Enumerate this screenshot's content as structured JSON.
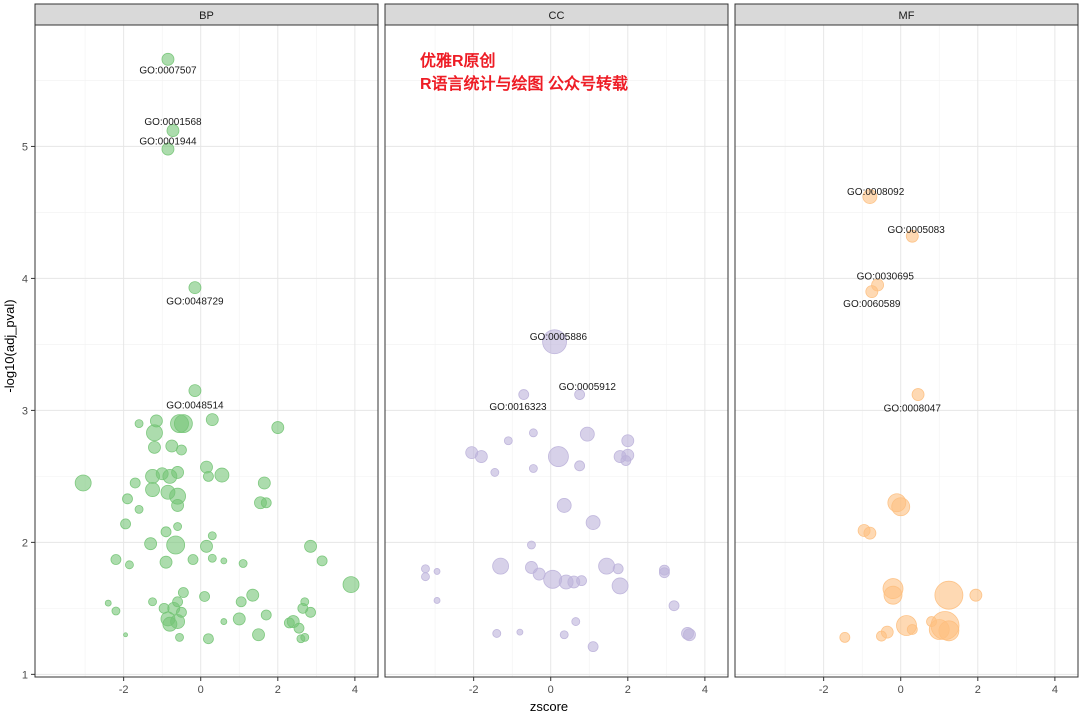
{
  "chart_data": {
    "type": "scatter",
    "xlabel": "zscore",
    "ylabel": "-log10(adj_pval)",
    "xlim": [
      -4.3,
      4.6
    ],
    "ylim": [
      0.98,
      5.92
    ],
    "x_ticks": [
      -2,
      0,
      2,
      4
    ],
    "y_ticks": [
      1,
      2,
      3,
      4,
      5
    ],
    "grid": true,
    "watermark": [
      "优雅R原创",
      "R语言统计与绘图 公众号转载"
    ],
    "panels": [
      {
        "facet": "BP",
        "color": "#74c476",
        "points": [
          {
            "x": -0.85,
            "y": 5.66,
            "r": 6
          },
          {
            "x": -0.72,
            "y": 5.12,
            "r": 6
          },
          {
            "x": -0.85,
            "y": 4.98,
            "r": 6
          },
          {
            "x": -0.15,
            "y": 3.93,
            "r": 6
          },
          {
            "x": -0.15,
            "y": 3.15,
            "r": 6
          },
          {
            "x": -3.05,
            "y": 2.45,
            "r": 8
          },
          {
            "x": -1.2,
            "y": 2.83,
            "r": 8
          },
          {
            "x": -1.15,
            "y": 2.92,
            "r": 6
          },
          {
            "x": -0.55,
            "y": 2.9,
            "r": 9
          },
          {
            "x": -0.45,
            "y": 2.9,
            "r": 9
          },
          {
            "x": 0.3,
            "y": 2.93,
            "r": 6
          },
          {
            "x": 2.0,
            "y": 2.87,
            "r": 6
          },
          {
            "x": -1.6,
            "y": 2.9,
            "r": 4
          },
          {
            "x": -0.75,
            "y": 2.73,
            "r": 6
          },
          {
            "x": -0.5,
            "y": 2.7,
            "r": 5
          },
          {
            "x": -1.2,
            "y": 2.72,
            "r": 6
          },
          {
            "x": -1.7,
            "y": 2.45,
            "r": 5
          },
          {
            "x": -1.25,
            "y": 2.5,
            "r": 7
          },
          {
            "x": -1.25,
            "y": 2.4,
            "r": 7
          },
          {
            "x": -1.0,
            "y": 2.52,
            "r": 6
          },
          {
            "x": -0.8,
            "y": 2.5,
            "r": 7
          },
          {
            "x": -0.6,
            "y": 2.53,
            "r": 6
          },
          {
            "x": -0.85,
            "y": 2.38,
            "r": 7
          },
          {
            "x": -0.6,
            "y": 2.35,
            "r": 8
          },
          {
            "x": -0.6,
            "y": 2.28,
            "r": 6
          },
          {
            "x": 0.15,
            "y": 2.57,
            "r": 6
          },
          {
            "x": 0.2,
            "y": 2.5,
            "r": 5
          },
          {
            "x": 0.55,
            "y": 2.51,
            "r": 7
          },
          {
            "x": 1.65,
            "y": 2.45,
            "r": 6
          },
          {
            "x": 1.55,
            "y": 2.3,
            "r": 6
          },
          {
            "x": 1.7,
            "y": 2.3,
            "r": 5
          },
          {
            "x": -1.9,
            "y": 2.33,
            "r": 5
          },
          {
            "x": -1.6,
            "y": 2.25,
            "r": 4
          },
          {
            "x": -1.95,
            "y": 2.14,
            "r": 5
          },
          {
            "x": -0.9,
            "y": 2.08,
            "r": 5
          },
          {
            "x": -1.3,
            "y": 1.99,
            "r": 6
          },
          {
            "x": -0.65,
            "y": 1.98,
            "r": 9
          },
          {
            "x": 0.15,
            "y": 1.97,
            "r": 6
          },
          {
            "x": 0.3,
            "y": 2.05,
            "r": 4
          },
          {
            "x": -0.6,
            "y": 2.12,
            "r": 4
          },
          {
            "x": -2.2,
            "y": 1.87,
            "r": 5
          },
          {
            "x": -1.85,
            "y": 1.83,
            "r": 4
          },
          {
            "x": -0.9,
            "y": 1.85,
            "r": 6
          },
          {
            "x": -0.2,
            "y": 1.87,
            "r": 5
          },
          {
            "x": 0.3,
            "y": 1.88,
            "r": 4
          },
          {
            "x": 0.6,
            "y": 1.86,
            "r": 3
          },
          {
            "x": 1.1,
            "y": 1.84,
            "r": 4
          },
          {
            "x": 2.85,
            "y": 1.97,
            "r": 6
          },
          {
            "x": 3.15,
            "y": 1.86,
            "r": 5
          },
          {
            "x": 3.9,
            "y": 1.68,
            "r": 8
          },
          {
            "x": -2.4,
            "y": 1.54,
            "r": 3
          },
          {
            "x": -2.2,
            "y": 1.48,
            "r": 4
          },
          {
            "x": -1.95,
            "y": 1.3,
            "r": 2
          },
          {
            "x": -1.25,
            "y": 1.55,
            "r": 4
          },
          {
            "x": -0.95,
            "y": 1.5,
            "r": 5
          },
          {
            "x": -0.7,
            "y": 1.5,
            "r": 6
          },
          {
            "x": -0.5,
            "y": 1.47,
            "r": 5
          },
          {
            "x": -0.45,
            "y": 1.62,
            "r": 5
          },
          {
            "x": -0.6,
            "y": 1.55,
            "r": 5
          },
          {
            "x": -0.85,
            "y": 1.42,
            "r": 7
          },
          {
            "x": -0.8,
            "y": 1.38,
            "r": 7
          },
          {
            "x": -0.6,
            "y": 1.4,
            "r": 7
          },
          {
            "x": 0.1,
            "y": 1.59,
            "r": 5
          },
          {
            "x": 1.05,
            "y": 1.55,
            "r": 5
          },
          {
            "x": 1.0,
            "y": 1.42,
            "r": 6
          },
          {
            "x": 1.35,
            "y": 1.6,
            "r": 6
          },
          {
            "x": 1.7,
            "y": 1.45,
            "r": 5
          },
          {
            "x": 2.4,
            "y": 1.4,
            "r": 6
          },
          {
            "x": 2.55,
            "y": 1.35,
            "r": 5
          },
          {
            "x": 2.65,
            "y": 1.5,
            "r": 5
          },
          {
            "x": 2.7,
            "y": 1.55,
            "r": 4
          },
          {
            "x": 2.85,
            "y": 1.47,
            "r": 5
          },
          {
            "x": 1.5,
            "y": 1.3,
            "r": 6
          },
          {
            "x": 0.2,
            "y": 1.27,
            "r": 5
          },
          {
            "x": -0.55,
            "y": 1.28,
            "r": 4
          },
          {
            "x": 2.3,
            "y": 1.39,
            "r": 5
          },
          {
            "x": 2.6,
            "y": 1.27,
            "r": 4
          },
          {
            "x": 2.7,
            "y": 1.28,
            "r": 4
          },
          {
            "x": 0.6,
            "y": 1.4,
            "r": 3
          }
        ],
        "labels": [
          {
            "text": "GO:0007507",
            "x": -0.85,
            "y": 5.58
          },
          {
            "text": "GO:0001568",
            "x": -0.72,
            "y": 5.19
          },
          {
            "text": "GO:0001944",
            "x": -0.85,
            "y": 5.04
          },
          {
            "text": "GO:0048729",
            "x": -0.15,
            "y": 3.83
          },
          {
            "text": "GO:0048514",
            "x": -0.15,
            "y": 3.04
          }
        ]
      },
      {
        "facet": "CC",
        "color": "#bcb2da",
        "points": [
          {
            "x": 0.1,
            "y": 3.52,
            "r": 12
          },
          {
            "x": 0.75,
            "y": 3.12,
            "r": 5
          },
          {
            "x": -0.7,
            "y": 3.12,
            "r": 5
          },
          {
            "x": -2.05,
            "y": 2.68,
            "r": 6
          },
          {
            "x": -1.8,
            "y": 2.65,
            "r": 6
          },
          {
            "x": -1.45,
            "y": 2.53,
            "r": 4
          },
          {
            "x": -1.1,
            "y": 2.77,
            "r": 4
          },
          {
            "x": -0.45,
            "y": 2.83,
            "r": 4
          },
          {
            "x": 0.2,
            "y": 2.65,
            "r": 10
          },
          {
            "x": 0.95,
            "y": 2.82,
            "r": 7
          },
          {
            "x": 0.75,
            "y": 2.58,
            "r": 5
          },
          {
            "x": 1.8,
            "y": 2.65,
            "r": 6
          },
          {
            "x": 2.0,
            "y": 2.77,
            "r": 6
          },
          {
            "x": 2.0,
            "y": 2.66,
            "r": 6
          },
          {
            "x": 1.95,
            "y": 2.62,
            "r": 5
          },
          {
            "x": -0.45,
            "y": 2.56,
            "r": 4
          },
          {
            "x": 0.35,
            "y": 2.28,
            "r": 7
          },
          {
            "x": 1.1,
            "y": 2.15,
            "r": 7
          },
          {
            "x": -0.5,
            "y": 1.98,
            "r": 4
          },
          {
            "x": -3.25,
            "y": 1.8,
            "r": 4
          },
          {
            "x": -3.25,
            "y": 1.74,
            "r": 4
          },
          {
            "x": -2.95,
            "y": 1.78,
            "r": 3
          },
          {
            "x": -1.3,
            "y": 1.82,
            "r": 8
          },
          {
            "x": -0.5,
            "y": 1.81,
            "r": 6
          },
          {
            "x": -0.3,
            "y": 1.76,
            "r": 6
          },
          {
            "x": 0.05,
            "y": 1.72,
            "r": 9
          },
          {
            "x": 0.4,
            "y": 1.7,
            "r": 7
          },
          {
            "x": 0.6,
            "y": 1.7,
            "r": 6
          },
          {
            "x": 0.8,
            "y": 1.71,
            "r": 5
          },
          {
            "x": 1.45,
            "y": 1.82,
            "r": 8
          },
          {
            "x": 1.75,
            "y": 1.8,
            "r": 5
          },
          {
            "x": 1.8,
            "y": 1.67,
            "r": 8
          },
          {
            "x": 2.95,
            "y": 1.79,
            "r": 5
          },
          {
            "x": 2.95,
            "y": 1.77,
            "r": 5
          },
          {
            "x": -2.95,
            "y": 1.56,
            "r": 3
          },
          {
            "x": 3.2,
            "y": 1.52,
            "r": 5
          },
          {
            "x": -1.4,
            "y": 1.31,
            "r": 4
          },
          {
            "x": -0.8,
            "y": 1.32,
            "r": 3
          },
          {
            "x": 0.35,
            "y": 1.3,
            "r": 4
          },
          {
            "x": 0.65,
            "y": 1.4,
            "r": 4
          },
          {
            "x": 1.1,
            "y": 1.21,
            "r": 5
          },
          {
            "x": 3.55,
            "y": 1.31,
            "r": 6
          },
          {
            "x": 3.6,
            "y": 1.3,
            "r": 6
          }
        ],
        "labels": [
          {
            "text": "GO:0005886",
            "x": 0.2,
            "y": 3.56
          },
          {
            "text": "GO:0005912",
            "x": 0.95,
            "y": 3.18
          },
          {
            "text": "GO:0016323",
            "x": -0.85,
            "y": 3.03
          }
        ]
      },
      {
        "facet": "MF",
        "color": "#fdbf80",
        "points": [
          {
            "x": -0.8,
            "y": 4.62,
            "r": 7
          },
          {
            "x": 0.3,
            "y": 4.32,
            "r": 6
          },
          {
            "x": -0.6,
            "y": 3.95,
            "r": 6
          },
          {
            "x": -0.75,
            "y": 3.9,
            "r": 6
          },
          {
            "x": 0.45,
            "y": 3.12,
            "r": 6
          },
          {
            "x": -0.1,
            "y": 2.3,
            "r": 9
          },
          {
            "x": 0.0,
            "y": 2.27,
            "r": 9
          },
          {
            "x": -0.95,
            "y": 2.09,
            "r": 6
          },
          {
            "x": -0.8,
            "y": 2.07,
            "r": 6
          },
          {
            "x": -0.2,
            "y": 1.65,
            "r": 10
          },
          {
            "x": -0.2,
            "y": 1.6,
            "r": 9
          },
          {
            "x": 1.25,
            "y": 1.6,
            "r": 14
          },
          {
            "x": 1.95,
            "y": 1.6,
            "r": 6
          },
          {
            "x": -1.45,
            "y": 1.28,
            "r": 5
          },
          {
            "x": -0.35,
            "y": 1.32,
            "r": 6
          },
          {
            "x": 0.15,
            "y": 1.37,
            "r": 10
          },
          {
            "x": 0.3,
            "y": 1.34,
            "r": 5
          },
          {
            "x": 0.8,
            "y": 1.4,
            "r": 5
          },
          {
            "x": 1.0,
            "y": 1.34,
            "r": 10
          },
          {
            "x": 1.15,
            "y": 1.37,
            "r": 14
          },
          {
            "x": 1.25,
            "y": 1.33,
            "r": 10
          },
          {
            "x": -0.5,
            "y": 1.29,
            "r": 5
          }
        ],
        "labels": [
          {
            "text": "GO:0008092",
            "x": -0.65,
            "y": 4.66
          },
          {
            "text": "GO:0005083",
            "x": 0.4,
            "y": 4.37
          },
          {
            "text": "GO:0030695",
            "x": -0.4,
            "y": 4.02
          },
          {
            "text": "GO:0060589",
            "x": -0.75,
            "y": 3.81
          },
          {
            "text": "GO:0008047",
            "x": 0.3,
            "y": 3.02
          }
        ]
      }
    ]
  }
}
